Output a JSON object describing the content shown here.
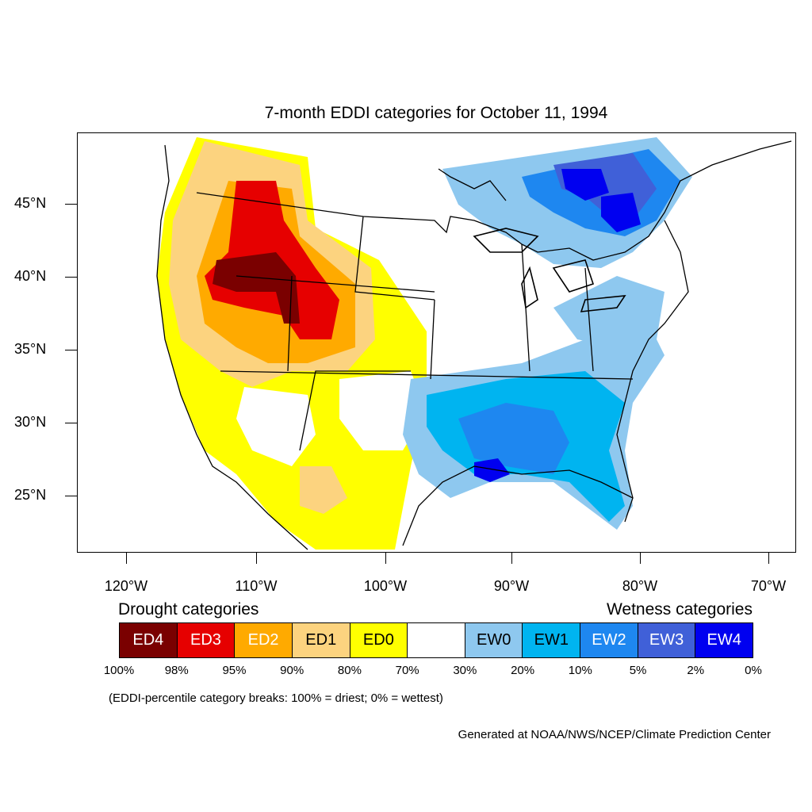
{
  "title": "7-month EDDI categories for October 11, 1994",
  "axes": {
    "lat_labels": [
      "45°N",
      "40°N",
      "35°N",
      "30°N",
      "25°N"
    ],
    "lon_labels": [
      "120°W",
      "110°W",
      "100°W",
      "90°W",
      "80°W",
      "70°W"
    ]
  },
  "legend": {
    "drought_heading": "Drought categories",
    "wetness_heading": "Wetness categories",
    "categories": [
      {
        "label": "ED4",
        "color": "#7a0000",
        "text_color": "#ffffff"
      },
      {
        "label": "ED3",
        "color": "#e60000",
        "text_color": "#ffffff"
      },
      {
        "label": "ED2",
        "color": "#ffaa00",
        "text_color": "#ffffff"
      },
      {
        "label": "ED1",
        "color": "#fcd37f",
        "text_color": "#000000"
      },
      {
        "label": "ED0",
        "color": "#ffff00",
        "text_color": "#000000"
      },
      {
        "label": "",
        "color": "#ffffff",
        "text_color": "#000000"
      },
      {
        "label": "EW0",
        "color": "#8ec8ef",
        "text_color": "#000000"
      },
      {
        "label": "EW1",
        "color": "#00b4f0",
        "text_color": "#000000"
      },
      {
        "label": "EW2",
        "color": "#1e87f0",
        "text_color": "#ffffff"
      },
      {
        "label": "EW3",
        "color": "#4060d8",
        "text_color": "#ffffff"
      },
      {
        "label": "EW4",
        "color": "#0000f0",
        "text_color": "#ffffff"
      }
    ],
    "breaks": [
      "100%",
      "98%",
      "95%",
      "90%",
      "80%",
      "70%",
      "30%",
      "20%",
      "10%",
      "5%",
      "2%",
      "0%"
    ]
  },
  "note": "(EDDI-percentile category breaks: 100% = driest; 0% = wettest)",
  "credit": "Generated at NOAA/NWS/NCEP/Climate Prediction Center"
}
